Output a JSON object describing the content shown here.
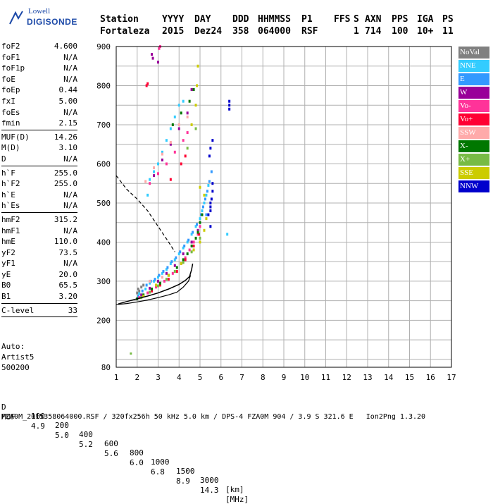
{
  "logo": {
    "line1": "Lowell",
    "line2": "DIGISONDE"
  },
  "header": {
    "labels": [
      "Station",
      "YYYY",
      "DAY",
      "DDD",
      "HHMMSS",
      "P1",
      "FFS",
      "S",
      "AXN",
      "PPS",
      "IGA",
      "PS"
    ],
    "values": [
      "Fortaleza",
      "2015",
      "Dez24",
      "358",
      "064000",
      "RSF",
      "",
      "1",
      "714",
      "100",
      "10+",
      "11"
    ]
  },
  "params": {
    "group1": [
      {
        "label": "foF2",
        "value": "4.600"
      },
      {
        "label": "foF1",
        "value": "N/A"
      },
      {
        "label": "foF1p",
        "value": "N/A"
      },
      {
        "label": "foE",
        "value": "N/A"
      },
      {
        "label": "foEp",
        "value": "0.44"
      },
      {
        "label": "fxI",
        "value": "5.00"
      },
      {
        "label": "foEs",
        "value": "N/A"
      },
      {
        "label": "fmin",
        "value": "2.15"
      }
    ],
    "group2": [
      {
        "label": "MUF(D)",
        "value": "14.26"
      },
      {
        "label": "M(D)",
        "value": "3.10"
      },
      {
        "label": "D",
        "value": "N/A"
      }
    ],
    "group3": [
      {
        "label": "h`F",
        "value": "255.0"
      },
      {
        "label": "h`F2",
        "value": "255.0"
      },
      {
        "label": "h`E",
        "value": "N/A"
      },
      {
        "label": "h`Es",
        "value": "N/A"
      }
    ],
    "group4": [
      {
        "label": "hmF2",
        "value": "315.2"
      },
      {
        "label": "hmF1",
        "value": "N/A"
      },
      {
        "label": "hmE",
        "value": "110.0"
      },
      {
        "label": "yF2",
        "value": "73.5"
      },
      {
        "label": "yF1",
        "value": "N/A"
      },
      {
        "label": "yE",
        "value": "20.0"
      },
      {
        "label": "B0",
        "value": "65.5"
      },
      {
        "label": "B1",
        "value": "3.20"
      }
    ],
    "group5": [
      {
        "label": "C-level",
        "value": "33"
      }
    ]
  },
  "auto": {
    "line1": "Auto:",
    "line2": "Artist5",
    "line3": "500200"
  },
  "legend": [
    {
      "label": "NoVal",
      "color": "#808080"
    },
    {
      "label": "NNE",
      "color": "#33ccff"
    },
    {
      "label": "E",
      "color": "#3399ff"
    },
    {
      "label": "W",
      "color": "#990099"
    },
    {
      "label": "Vo-",
      "color": "#ff3399"
    },
    {
      "label": "Vo+",
      "color": "#ff0033"
    },
    {
      "label": "SSW",
      "color": "#ffaaaa"
    },
    {
      "label": "X-",
      "color": "#007700"
    },
    {
      "label": "X+",
      "color": "#77bb44"
    },
    {
      "label": "SSE",
      "color": "#cccc00"
    },
    {
      "label": "NNW",
      "color": "#0000cc"
    }
  ],
  "footer": {
    "d_label": "D",
    "d_values": [
      "100",
      "200",
      "400",
      "600",
      "800",
      "1000",
      "1500",
      "3000",
      "[km]"
    ],
    "muf_label": "MUF",
    "muf_values": [
      "4.9",
      "5.0",
      "5.2",
      "5.6",
      "6.0",
      "6.8",
      "8.9",
      "14.3",
      "[MHz]"
    ],
    "info": "FZA0M_2015358064000.RSF / 320fx256h 50 kHz 5.0 km / DPS-4 FZA0M 904 / 3.9 S 321.6 E   Ion2Png 1.3.20"
  },
  "chart_data": {
    "type": "scatter",
    "xlim": [
      1,
      17
    ],
    "ylim": [
      80,
      900
    ],
    "x_ticks": [
      1,
      2,
      3,
      4,
      5,
      6,
      7,
      8,
      9,
      10,
      11,
      12,
      13,
      14,
      15,
      16,
      17
    ],
    "y_ticks": [
      80,
      200,
      300,
      400,
      500,
      600,
      700,
      800,
      900
    ],
    "grid": true,
    "clusters": [
      {
        "color": "#808080",
        "points": [
          [
            2.0,
            270
          ],
          [
            2.05,
            280
          ],
          [
            2.1,
            275
          ],
          [
            2.2,
            285
          ],
          [
            2.3,
            290
          ]
        ]
      },
      {
        "color": "#33ccff",
        "points": [
          [
            2.1,
            268
          ],
          [
            2.4,
            280
          ],
          [
            2.6,
            295
          ],
          [
            2.8,
            300
          ],
          [
            3.0,
            310
          ],
          [
            3.2,
            320
          ],
          [
            3.4,
            330
          ],
          [
            3.6,
            345
          ],
          [
            3.8,
            355
          ],
          [
            4.0,
            370
          ],
          [
            4.2,
            385
          ],
          [
            4.4,
            400
          ],
          [
            4.6,
            420
          ],
          [
            4.8,
            440
          ],
          [
            5.0,
            460
          ],
          [
            5.1,
            480
          ],
          [
            5.2,
            500
          ],
          [
            5.3,
            520
          ],
          [
            5.4,
            545
          ],
          [
            2.5,
            520
          ],
          [
            2.6,
            560
          ],
          [
            2.8,
            580
          ],
          [
            3.0,
            600
          ],
          [
            3.2,
            630
          ],
          [
            3.4,
            660
          ],
          [
            3.6,
            690
          ],
          [
            3.8,
            720
          ],
          [
            4.0,
            750
          ],
          [
            4.2,
            760
          ],
          [
            6.3,
            420
          ]
        ]
      },
      {
        "color": "#3399ff",
        "points": [
          [
            2.05,
            262
          ],
          [
            2.25,
            275
          ],
          [
            2.45,
            290
          ],
          [
            2.65,
            300
          ],
          [
            2.85,
            305
          ],
          [
            3.05,
            315
          ],
          [
            3.25,
            325
          ],
          [
            3.45,
            335
          ],
          [
            3.65,
            350
          ],
          [
            3.85,
            360
          ],
          [
            4.05,
            375
          ],
          [
            4.25,
            390
          ],
          [
            4.45,
            405
          ],
          [
            4.65,
            425
          ],
          [
            4.85,
            445
          ],
          [
            5.05,
            470
          ],
          [
            5.15,
            490
          ],
          [
            5.25,
            510
          ],
          [
            5.35,
            530
          ],
          [
            5.45,
            555
          ],
          [
            5.55,
            580
          ],
          [
            5.3,
            470
          ]
        ]
      },
      {
        "color": "#990099",
        "points": [
          [
            2.2,
            265
          ],
          [
            2.6,
            282
          ],
          [
            3.0,
            300
          ],
          [
            3.4,
            320
          ],
          [
            3.8,
            340
          ],
          [
            4.2,
            370
          ],
          [
            4.6,
            400
          ],
          [
            4.9,
            430
          ],
          [
            2.8,
            570
          ],
          [
            3.2,
            610
          ],
          [
            3.6,
            650
          ],
          [
            4.0,
            690
          ],
          [
            4.4,
            730
          ],
          [
            4.6,
            790
          ],
          [
            2.7,
            880
          ],
          [
            2.75,
            870
          ],
          [
            3.0,
            860
          ]
        ]
      },
      {
        "color": "#ff3399",
        "points": [
          [
            2.1,
            258
          ],
          [
            2.5,
            270
          ],
          [
            2.9,
            285
          ],
          [
            3.3,
            300
          ],
          [
            3.7,
            320
          ],
          [
            4.1,
            345
          ],
          [
            4.3,
            360
          ],
          [
            4.5,
            380
          ],
          [
            4.7,
            400
          ],
          [
            4.9,
            420
          ],
          [
            5.0,
            440
          ],
          [
            2.6,
            550
          ],
          [
            3.0,
            575
          ],
          [
            3.4,
            600
          ],
          [
            3.8,
            630
          ],
          [
            4.2,
            660
          ],
          [
            4.4,
            680
          ],
          [
            3.1,
            900
          ],
          [
            3.05,
            895
          ]
        ]
      },
      {
        "color": "#ff0033",
        "points": [
          [
            2.3,
            262
          ],
          [
            2.7,
            275
          ],
          [
            3.1,
            290
          ],
          [
            3.5,
            305
          ],
          [
            3.9,
            325
          ],
          [
            4.3,
            355
          ],
          [
            4.7,
            390
          ],
          [
            4.95,
            420
          ],
          [
            3.6,
            560
          ],
          [
            4.1,
            600
          ],
          [
            4.3,
            620
          ],
          [
            2.5,
            805
          ],
          [
            2.45,
            800
          ]
        ]
      },
      {
        "color": "#ffaaaa",
        "points": [
          [
            2.4,
            555
          ],
          [
            2.8,
            590
          ],
          [
            3.2,
            625
          ],
          [
            3.6,
            655
          ],
          [
            4.0,
            700
          ],
          [
            4.4,
            720
          ],
          [
            2.6,
            300
          ],
          [
            3.2,
            310
          ]
        ]
      },
      {
        "color": "#007700",
        "points": [
          [
            2.0,
            255
          ],
          [
            2.3,
            265
          ],
          [
            2.7,
            280
          ],
          [
            3.1,
            295
          ],
          [
            3.5,
            315
          ],
          [
            3.9,
            335
          ],
          [
            4.2,
            355
          ],
          [
            4.4,
            370
          ],
          [
            4.6,
            390
          ],
          [
            4.8,
            410
          ],
          [
            4.9,
            425
          ],
          [
            5.0,
            450
          ],
          [
            5.1,
            470
          ],
          [
            3.7,
            700
          ],
          [
            4.1,
            730
          ],
          [
            4.5,
            760
          ],
          [
            4.7,
            790
          ]
        ]
      },
      {
        "color": "#77bb44",
        "points": [
          [
            2.2,
            258
          ],
          [
            2.6,
            272
          ],
          [
            3.0,
            288
          ],
          [
            3.4,
            305
          ],
          [
            3.8,
            325
          ],
          [
            4.2,
            348
          ],
          [
            4.6,
            375
          ],
          [
            5.0,
            410
          ],
          [
            4.4,
            640
          ],
          [
            4.8,
            690
          ]
        ]
      },
      {
        "color": "#cccc00",
        "points": [
          [
            2.3,
            262
          ],
          [
            2.9,
            290
          ],
          [
            3.5,
            315
          ],
          [
            4.1,
            345
          ],
          [
            4.7,
            380
          ],
          [
            5.0,
            400
          ],
          [
            5.2,
            430
          ],
          [
            5.3,
            460
          ],
          [
            4.6,
            700
          ],
          [
            4.8,
            750
          ],
          [
            4.85,
            800
          ],
          [
            4.9,
            850
          ],
          [
            5.0,
            540
          ],
          [
            5.2,
            520
          ]
        ]
      },
      {
        "color": "#0000cc",
        "points": [
          [
            5.5,
            480
          ],
          [
            5.5,
            490
          ],
          [
            5.5,
            500
          ],
          [
            5.55,
            510
          ],
          [
            5.5,
            440
          ],
          [
            5.4,
            470
          ],
          [
            5.6,
            530
          ],
          [
            5.6,
            550
          ],
          [
            5.45,
            620
          ],
          [
            5.5,
            640
          ],
          [
            5.6,
            660
          ],
          [
            6.4,
            740
          ],
          [
            6.4,
            750
          ],
          [
            6.4,
            760
          ]
        ]
      }
    ],
    "virtual_height_curve": {
      "color": "#000000",
      "points": [
        [
          1.1,
          242
        ],
        [
          1.5,
          248
        ],
        [
          2.0,
          255
        ],
        [
          2.5,
          262
        ],
        [
          3.0,
          270
        ],
        [
          3.5,
          280
        ],
        [
          4.0,
          292
        ],
        [
          4.3,
          302
        ],
        [
          4.5,
          312
        ],
        [
          4.6,
          330
        ],
        [
          4.65,
          345
        ]
      ]
    },
    "true_height_curve": {
      "color": "#000000",
      "points": [
        [
          1.0,
          240
        ],
        [
          1.5,
          243
        ],
        [
          2.0,
          247
        ],
        [
          2.5,
          252
        ],
        [
          3.0,
          258
        ],
        [
          3.5,
          265
        ],
        [
          3.9,
          272
        ],
        [
          4.2,
          285
        ],
        [
          4.45,
          300
        ],
        [
          4.55,
          315
        ]
      ]
    },
    "dashed_curve": {
      "color": "#000000",
      "points": [
        [
          1.0,
          570
        ],
        [
          1.5,
          535
        ],
        [
          2.0,
          510
        ],
        [
          2.5,
          480
        ],
        [
          3.0,
          440
        ],
        [
          3.5,
          400
        ],
        [
          3.8,
          375
        ]
      ]
    },
    "lone_point": {
      "color": "#77bb44",
      "points": [
        [
          1.7,
          115
        ]
      ]
    }
  }
}
